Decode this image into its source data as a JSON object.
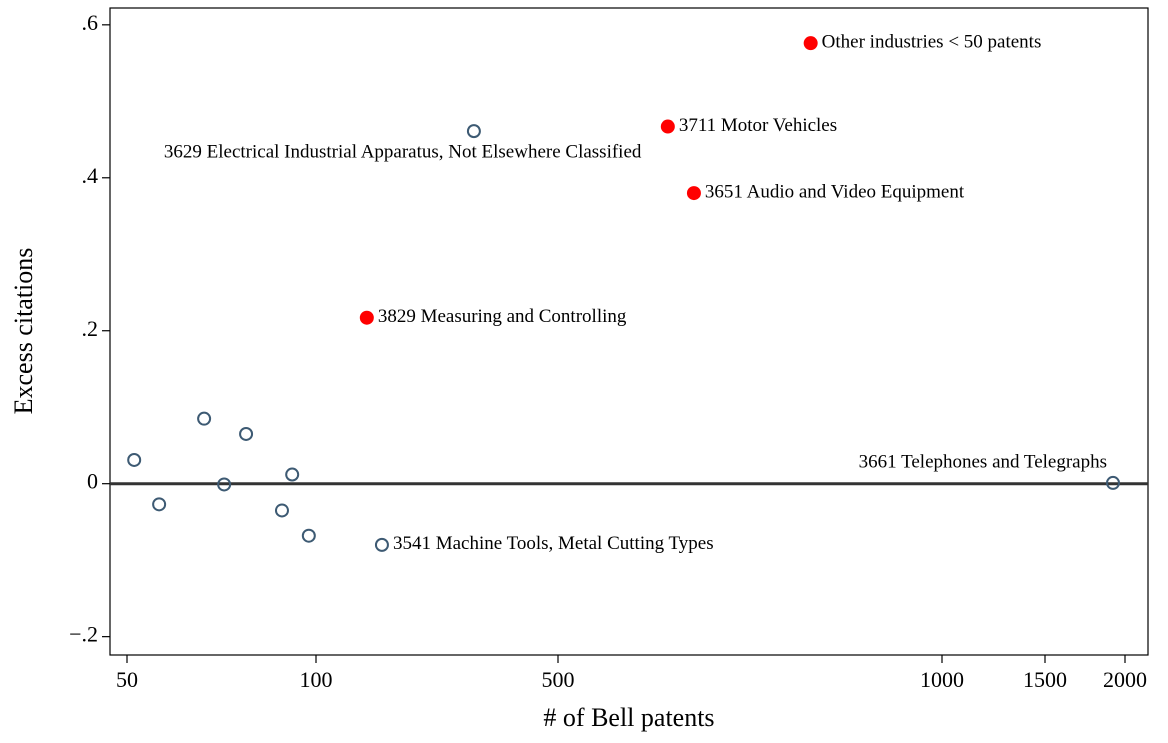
{
  "chart_data": {
    "type": "scatter",
    "xlabel": "# of Bell patents",
    "ylabel": "Excess citations",
    "xlim": [
      45,
      2150
    ],
    "ylim": [
      -0.224,
      0.622
    ],
    "xticks": [
      50,
      100,
      500,
      1000,
      1500,
      2000
    ],
    "yticks": [
      {
        "value": 0.6,
        "label": ".6"
      },
      {
        "value": 0.4,
        "label": ".4"
      },
      {
        "value": 0.2,
        "label": ".2"
      },
      0,
      {
        "value": -0.2,
        "label": "−.2"
      }
    ],
    "hline": 0,
    "series": [
      {
        "color": "#3d5a73",
        "marker": "hollow",
        "x": [
          51.9,
          58.5,
          70.4,
          75.7,
          81.5,
          91.0,
          93.7,
          98.1,
          209,
          361,
          1925
        ],
        "values": [
          0.031,
          -0.027,
          0.085,
          -0.001,
          0.065,
          -0.035,
          0.012,
          -0.068,
          -0.08,
          0.461,
          0.001
        ],
        "labels": [
          null,
          null,
          null,
          null,
          null,
          null,
          null,
          null,
          "3541 Machine Tools, Metal Cutting Types",
          "3629 Electrical Industrial Apparatus, Not Elsewhere Classified",
          "3661 Telephones and Telegraphs"
        ]
      },
      {
        "color": "#ff0000",
        "marker": "filled",
        "x": [
          184,
          643,
          677,
          829
        ],
        "values": [
          0.217,
          0.467,
          0.38,
          0.576
        ],
        "labels": [
          "3829 Measuring and Controlling",
          "3711 Motor Vehicles",
          "3651 Audio and Video Equipment",
          "Other industries < 50 patents"
        ]
      }
    ]
  }
}
